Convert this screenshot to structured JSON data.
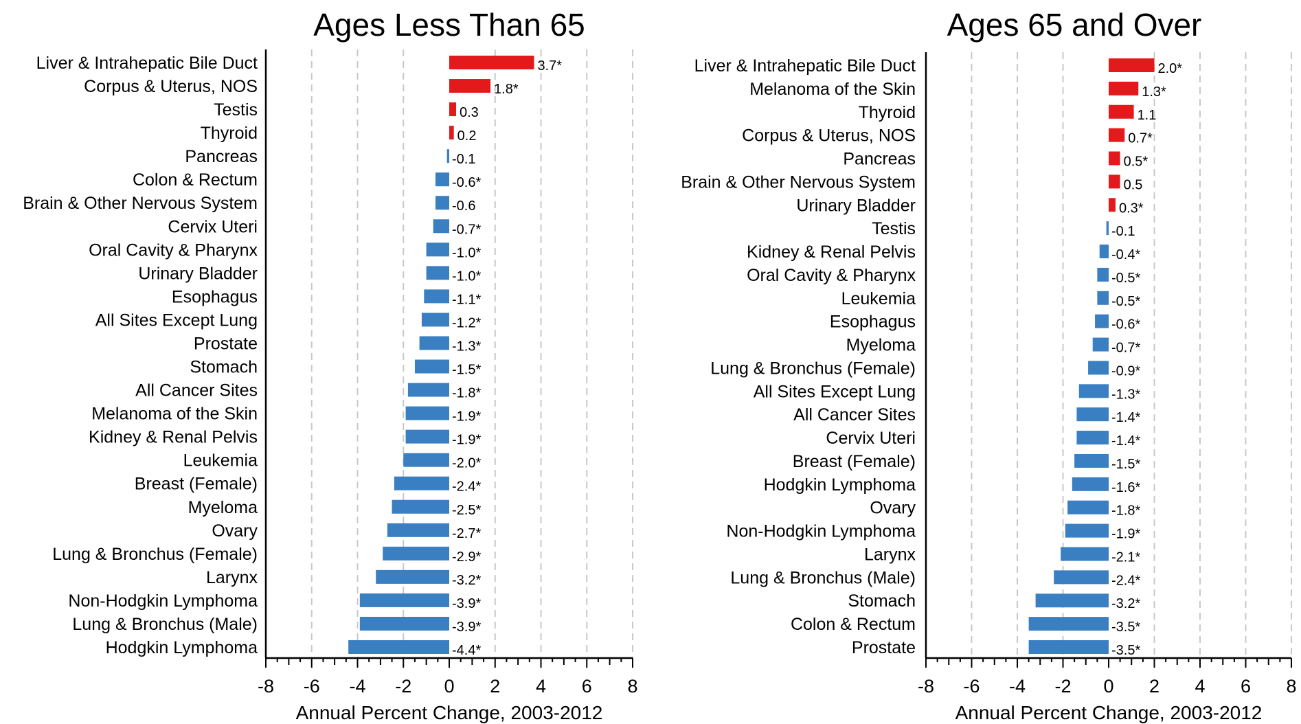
{
  "chart_data": [
    {
      "type": "bar",
      "orientation": "horizontal",
      "title": "Ages Less Than 65",
      "xlabel": "Annual Percent Change, 2003-2012",
      "xlim": [
        -8,
        8
      ],
      "xticks": [
        "-8",
        "-6",
        "-4",
        "-2",
        "0",
        "2",
        "4",
        "6",
        "8"
      ],
      "grid": "vertical dashed",
      "colors": {
        "positive": "#e31a1c",
        "negative": "#3a7fc1"
      },
      "categories": [
        "Liver & Intrahepatic Bile Duct",
        "Corpus & Uterus, NOS",
        "Testis",
        "Thyroid",
        "Pancreas",
        "Colon & Rectum",
        "Brain & Other Nervous System",
        "Cervix Uteri",
        "Oral Cavity & Pharynx",
        "Urinary Bladder",
        "Esophagus",
        "All Sites Except Lung",
        "Prostate",
        "Stomach",
        "All Cancer Sites",
        "Melanoma of the Skin",
        "Kidney & Renal Pelvis",
        "Leukemia",
        "Breast (Female)",
        "Myeloma",
        "Ovary",
        "Lung & Bronchus (Female)",
        "Larynx",
        "Non-Hodgkin Lymphoma",
        "Lung & Bronchus (Male)",
        "Hodgkin Lymphoma"
      ],
      "values": [
        3.7,
        1.8,
        0.3,
        0.2,
        -0.1,
        -0.6,
        -0.6,
        -0.7,
        -1.0,
        -1.0,
        -1.1,
        -1.2,
        -1.3,
        -1.5,
        -1.8,
        -1.9,
        -1.9,
        -2.0,
        -2.4,
        -2.5,
        -2.7,
        -2.9,
        -3.2,
        -3.9,
        -3.9,
        -4.4
      ],
      "labels": [
        "3.7*",
        "1.8*",
        "0.3",
        "0.2",
        "-0.1",
        "-0.6*",
        "-0.6",
        "-0.7*",
        "-1.0*",
        "-1.0*",
        "-1.1*",
        "-1.2*",
        "-1.3*",
        "-1.5*",
        "-1.8*",
        "-1.9*",
        "-1.9*",
        "-2.0*",
        "-2.4*",
        "-2.5*",
        "-2.7*",
        "-2.9*",
        "-3.2*",
        "-3.9*",
        "-3.9*",
        "-4.4*"
      ]
    },
    {
      "type": "bar",
      "orientation": "horizontal",
      "title": "Ages 65 and Over",
      "xlabel": "Annual Percent Change, 2003-2012",
      "xlim": [
        -8,
        8
      ],
      "xticks": [
        "-8",
        "-6",
        "-4",
        "-2",
        "0",
        "2",
        "4",
        "6",
        "8"
      ],
      "grid": "vertical dashed",
      "colors": {
        "positive": "#e31a1c",
        "negative": "#3a7fc1"
      },
      "categories": [
        "Liver & Intrahepatic Bile Duct",
        "Melanoma of the Skin",
        "Thyroid",
        "Corpus & Uterus, NOS",
        "Pancreas",
        "Brain & Other Nervous System",
        "Urinary Bladder",
        "Testis",
        "Kidney & Renal Pelvis",
        "Oral Cavity & Pharynx",
        "Leukemia",
        "Esophagus",
        "Myeloma",
        "Lung & Bronchus (Female)",
        "All Sites Except Lung",
        "All Cancer Sites",
        "Cervix Uteri",
        "Breast (Female)",
        "Hodgkin Lymphoma",
        "Ovary",
        "Non-Hodgkin Lymphoma",
        "Larynx",
        "Lung & Bronchus (Male)",
        "Stomach",
        "Colon & Rectum",
        "Prostate"
      ],
      "values": [
        2.0,
        1.3,
        1.1,
        0.7,
        0.5,
        0.5,
        0.3,
        -0.1,
        -0.4,
        -0.5,
        -0.5,
        -0.6,
        -0.7,
        -0.9,
        -1.3,
        -1.4,
        -1.4,
        -1.5,
        -1.6,
        -1.8,
        -1.9,
        -2.1,
        -2.4,
        -3.2,
        -3.5,
        -3.5
      ],
      "labels": [
        "2.0*",
        "1.3*",
        "1.1",
        "0.7*",
        "0.5*",
        "0.5",
        "0.3*",
        "-0.1",
        "-0.4*",
        "-0.5*",
        "-0.5*",
        "-0.6*",
        "-0.7*",
        "-0.9*",
        "-1.3*",
        "-1.4*",
        "-1.4*",
        "-1.5*",
        "-1.6*",
        "-1.8*",
        "-1.9*",
        "-2.1*",
        "-2.4*",
        "-3.2*",
        "-3.5*",
        "-3.5*"
      ]
    }
  ]
}
